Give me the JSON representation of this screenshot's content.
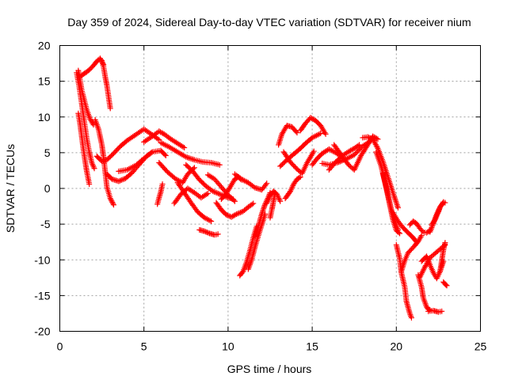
{
  "chart_data": {
    "type": "scatter",
    "title": "Day 359 of 2024, Sidereal Day-to-day VTEC variation (SDTVAR) for receiver nium",
    "xlabel": "GPS time / hours",
    "ylabel": "SDTVAR / TECUs",
    "xlim": [
      0,
      25
    ],
    "ylim": [
      -20,
      20
    ],
    "xticks": [
      0,
      5,
      10,
      15,
      20,
      25
    ],
    "yticks": [
      -20,
      -15,
      -10,
      -5,
      0,
      5,
      10,
      15,
      20
    ],
    "grid": true,
    "marker": "+",
    "color": "#ff0000",
    "series": [
      {
        "x": [
          1.1,
          1.2,
          1.3,
          1.45,
          1.6,
          1.8,
          2.0
        ],
        "y": [
          16.5,
          15.2,
          13.8,
          12.4,
          11.0,
          9.7,
          8.9
        ]
      },
      {
        "x": [
          1.0,
          1.15,
          1.3,
          1.45,
          1.6,
          1.75,
          1.9,
          2.05
        ],
        "y": [
          16.2,
          14.3,
          11.9,
          9.4,
          7.0,
          5.1,
          3.6,
          2.8
        ]
      },
      {
        "x": [
          1.1,
          1.2,
          1.3,
          1.4,
          1.5,
          1.6,
          1.75
        ],
        "y": [
          10.5,
          9.1,
          7.3,
          5.5,
          3.9,
          2.4,
          0.6
        ]
      },
      {
        "x": [
          1.2,
          1.4,
          1.6,
          1.8,
          2.0,
          2.2,
          2.4,
          2.6
        ],
        "y": [
          15.6,
          16.0,
          16.3,
          16.7,
          17.2,
          17.8,
          18.2,
          17.3
        ]
      },
      {
        "x": [
          2.5,
          2.6,
          2.7,
          2.8,
          2.9,
          3.0
        ],
        "y": [
          17.9,
          17.0,
          15.6,
          14.4,
          12.8,
          11.2
        ]
      },
      {
        "x": [
          2.1,
          2.3,
          2.5,
          2.6,
          2.8,
          3.0,
          3.2
        ],
        "y": [
          9.6,
          8.3,
          6.1,
          4.4,
          0.2,
          -1.4,
          -2.3
        ]
      },
      {
        "x": [
          2.2,
          2.5,
          2.8,
          3.2,
          3.6,
          4.0,
          4.5,
          5.0,
          5.5,
          5.9
        ],
        "y": [
          4.5,
          3.8,
          4.0,
          4.9,
          5.9,
          6.7,
          7.5,
          8.3,
          7.5,
          6.8
        ]
      },
      {
        "x": [
          2.8,
          3.1,
          3.5,
          3.9,
          4.3,
          4.7,
          5.2,
          5.5
        ],
        "y": [
          2.0,
          1.3,
          1.0,
          1.4,
          2.2,
          3.3,
          4.6,
          5.1
        ]
      },
      {
        "x": [
          3.5,
          4.0,
          4.5,
          5.0,
          5.5,
          6.0,
          6.3
        ],
        "y": [
          2.4,
          2.6,
          3.2,
          4.2,
          5.1,
          5.3,
          4.6
        ]
      },
      {
        "x": [
          5.0,
          5.5,
          5.9,
          6.2,
          6.6,
          7.0,
          7.4
        ],
        "y": [
          6.5,
          7.3,
          8.0,
          7.6,
          6.9,
          6.3,
          5.7
        ]
      },
      {
        "x": [
          5.8,
          5.9,
          6.0,
          6.1
        ],
        "y": [
          -2.2,
          -1.3,
          -0.5,
          0.6
        ]
      },
      {
        "x": [
          5.9,
          6.4,
          6.9,
          7.3,
          7.6,
          8.0
        ],
        "y": [
          3.6,
          2.3,
          1.3,
          0.8,
          2.0,
          2.9
        ]
      },
      {
        "x": [
          6.0,
          6.5,
          7.0,
          7.5,
          8.0,
          8.5,
          9.0,
          9.5
        ],
        "y": [
          6.4,
          5.8,
          5.1,
          4.4,
          4.0,
          3.7,
          3.6,
          3.3
        ]
      },
      {
        "x": [
          6.8,
          7.2,
          7.6,
          8.0,
          8.4,
          8.8
        ],
        "y": [
          -2.1,
          -0.8,
          0.0,
          -0.6,
          -1.3,
          -0.7
        ]
      },
      {
        "x": [
          7.0,
          7.4,
          7.8,
          8.2,
          8.6,
          9.0
        ],
        "y": [
          0.8,
          -0.6,
          -2.0,
          -3.3,
          -4.1,
          -4.6
        ]
      },
      {
        "x": [
          7.5,
          7.9,
          8.3,
          8.7,
          9.1,
          9.5,
          9.9,
          10.3
        ],
        "y": [
          3.3,
          2.4,
          1.2,
          0.3,
          -0.4,
          -0.8,
          -1.2,
          -1.5
        ]
      },
      {
        "x": [
          8.3,
          8.6,
          8.9,
          9.2,
          9.4
        ],
        "y": [
          -5.8,
          -6.0,
          -6.3,
          -6.5,
          -6.4
        ]
      },
      {
        "x": [
          8.8,
          9.2,
          9.6,
          10.0,
          10.4
        ],
        "y": [
          1.9,
          1.3,
          0.2,
          -0.9,
          -1.8
        ]
      },
      {
        "x": [
          9.3,
          9.6,
          9.9,
          10.2,
          10.5,
          10.9,
          11.2,
          11.5
        ],
        "y": [
          -2.0,
          -3.0,
          -3.7,
          -4.0,
          -3.6,
          -3.2,
          -2.6,
          -2.1
        ]
      },
      {
        "x": [
          9.6,
          9.9,
          10.2,
          10.4,
          10.6,
          10.8
        ],
        "y": [
          -1.5,
          -0.7,
          0.5,
          1.3,
          1.6,
          1.2
        ]
      },
      {
        "x": [
          10.4,
          10.8,
          11.2,
          11.6,
          12.0,
          12.3
        ],
        "y": [
          2.0,
          1.3,
          0.8,
          0.1,
          -0.2,
          0.7
        ]
      },
      {
        "x": [
          10.7,
          10.9,
          11.1,
          11.3,
          11.5,
          11.7
        ],
        "y": [
          -12.2,
          -11.6,
          -10.3,
          -8.7,
          -6.9,
          -5.3
        ]
      },
      {
        "x": [
          11.2,
          11.4,
          11.6,
          11.8,
          12.0,
          12.2
        ],
        "y": [
          -11.3,
          -10.0,
          -8.2,
          -6.6,
          -5.1,
          -3.6
        ]
      },
      {
        "x": [
          11.6,
          11.8,
          12.0,
          12.2,
          12.4,
          12.5
        ],
        "y": [
          -6.7,
          -5.3,
          -3.6,
          -2.2,
          -1.2,
          -0.6
        ]
      },
      {
        "x": [
          12.3,
          12.5,
          12.7,
          12.9,
          13.1
        ],
        "y": [
          -2.1,
          -1.0,
          -0.4,
          -0.8,
          -1.8
        ]
      },
      {
        "x": [
          12.5,
          12.6,
          12.7,
          12.8
        ],
        "y": [
          -4.1,
          -3.0,
          -1.8,
          -0.6
        ]
      },
      {
        "x": [
          13.0,
          13.2,
          13.5,
          13.8,
          14.1
        ],
        "y": [
          6.1,
          7.6,
          8.8,
          8.6,
          7.8
        ]
      },
      {
        "x": [
          13.1,
          13.5,
          13.9,
          14.3,
          14.6,
          15.0,
          15.5
        ],
        "y": [
          3.1,
          4.0,
          4.8,
          5.6,
          6.3,
          7.1,
          7.7
        ]
      },
      {
        "x": [
          13.3,
          13.7,
          14.1,
          14.4,
          14.7,
          15.1
        ],
        "y": [
          5.1,
          3.7,
          2.7,
          2.1,
          3.6,
          5.2
        ]
      },
      {
        "x": [
          13.4,
          13.7,
          13.9,
          14.1,
          14.3
        ],
        "y": [
          -1.4,
          -0.4,
          0.6,
          1.3,
          1.6
        ]
      },
      {
        "x": [
          14.3,
          14.6,
          14.9,
          15.2,
          15.5,
          15.8
        ],
        "y": [
          8.1,
          9.1,
          9.9,
          9.5,
          8.8,
          7.6
        ]
      },
      {
        "x": [
          15.0,
          15.3,
          15.6,
          16.0,
          16.4,
          16.8
        ],
        "y": [
          3.3,
          4.2,
          4.9,
          5.5,
          5.0,
          4.3
        ]
      },
      {
        "x": [
          15.6,
          16.0,
          16.5,
          17.0,
          17.5,
          18.0,
          18.5
        ],
        "y": [
          3.5,
          3.3,
          3.6,
          4.1,
          4.7,
          5.9,
          6.7
        ]
      },
      {
        "x": [
          16.0,
          16.4,
          16.8,
          17.2,
          17.5,
          17.8
        ],
        "y": [
          2.6,
          3.7,
          4.6,
          5.2,
          5.6,
          6.1
        ]
      },
      {
        "x": [
          16.3,
          16.6,
          16.9,
          17.2,
          17.5,
          17.9,
          18.3,
          18.6,
          18.9
        ],
        "y": [
          6.1,
          5.1,
          4.1,
          3.2,
          2.6,
          4.6,
          6.1,
          7.3,
          6.9
        ]
      },
      {
        "x": [
          18.0,
          18.3,
          18.6,
          18.9,
          19.2,
          19.5,
          19.8,
          20.1
        ],
        "y": [
          7.1,
          7.2,
          6.9,
          5.6,
          3.8,
          1.6,
          -0.6,
          -2.7
        ]
      },
      {
        "x": [
          18.8,
          19.1,
          19.3,
          19.5,
          19.7,
          19.9,
          20.1
        ],
        "y": [
          5.1,
          3.1,
          1.1,
          -0.9,
          -2.9,
          -4.6,
          -5.8
        ]
      },
      {
        "x": [
          19.2,
          19.4,
          19.6,
          19.8,
          20.0,
          20.2
        ],
        "y": [
          2.1,
          0.1,
          -2.2,
          -4.4,
          -5.9,
          -6.3
        ]
      },
      {
        "x": [
          19.8,
          20.1,
          20.4,
          20.7,
          21.0,
          21.2
        ],
        "y": [
          -3.4,
          -4.6,
          -5.5,
          -6.2,
          -6.9,
          -7.5
        ]
      },
      {
        "x": [
          20.0,
          20.2,
          20.3,
          20.5,
          20.6,
          20.8,
          20.9
        ],
        "y": [
          -7.9,
          -9.8,
          -11.8,
          -13.8,
          -15.8,
          -17.5,
          -18.1
        ]
      },
      {
        "x": [
          20.3,
          20.5,
          20.7,
          20.9,
          21.1,
          21.3,
          21.5
        ],
        "y": [
          -11.6,
          -10.1,
          -9.0,
          -8.5,
          -8.0,
          -7.4,
          -6.6
        ]
      },
      {
        "x": [
          20.8,
          21.0,
          21.2,
          21.4,
          21.6,
          21.8,
          22.0
        ],
        "y": [
          -5.1,
          -4.6,
          -4.9,
          -5.6,
          -6.1,
          -6.2,
          -5.9
        ]
      },
      {
        "x": [
          21.3,
          21.5,
          21.6,
          21.8,
          21.9,
          22.0
        ],
        "y": [
          -12.1,
          -13.8,
          -15.3,
          -16.6,
          -16.9,
          -17.0
        ]
      },
      {
        "x": [
          21.9,
          22.2,
          22.5,
          22.7
        ],
        "y": [
          -17.2,
          -17.1,
          -17.3,
          -17.2
        ]
      },
      {
        "x": [
          21.4,
          21.7,
          22.0,
          22.3,
          22.6,
          22.9
        ],
        "y": [
          -12.4,
          -11.0,
          -9.7,
          -9.1,
          -8.5,
          -7.9
        ]
      },
      {
        "x": [
          21.5,
          21.8,
          22.0,
          22.2,
          22.4,
          22.6,
          22.8
        ],
        "y": [
          -10.2,
          -9.5,
          -10.7,
          -11.8,
          -12.6,
          -11.6,
          -10.2
        ]
      },
      {
        "x": [
          22.0,
          22.2,
          22.4,
          22.6,
          22.8
        ],
        "y": [
          -6.1,
          -4.9,
          -3.6,
          -2.6,
          -1.9
        ]
      },
      {
        "x": [
          22.1,
          22.3,
          22.5,
          22.6,
          22.8,
          22.9
        ],
        "y": [
          -5.1,
          -4.4,
          -3.3,
          -2.6,
          -2.0,
          -2.0
        ]
      },
      {
        "x": [
          22.6,
          22.7,
          22.8,
          22.9
        ],
        "y": [
          -11.6,
          -10.1,
          -8.6,
          -7.6
        ]
      },
      {
        "x": [
          22.8,
          22.9,
          23.0
        ],
        "y": [
          -13.1,
          -13.4,
          -13.6
        ]
      }
    ]
  }
}
